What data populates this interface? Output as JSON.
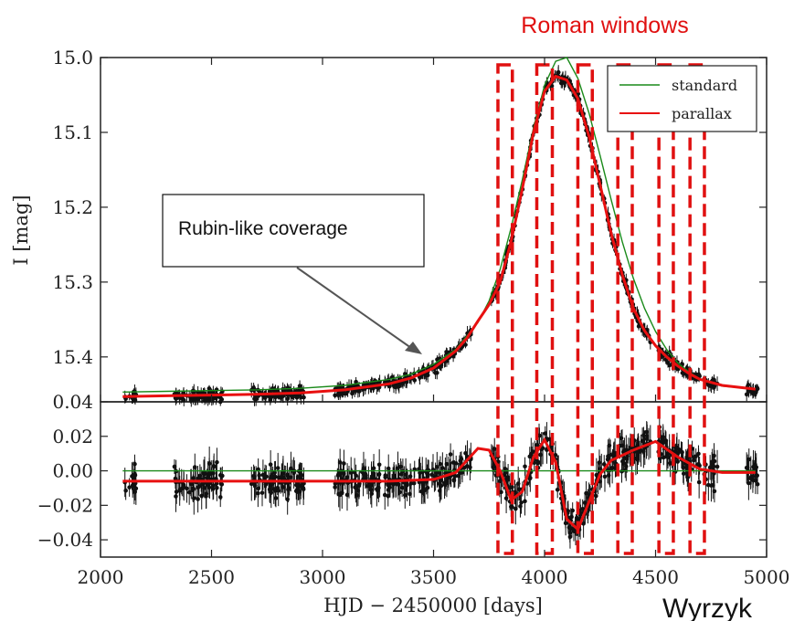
{
  "chart_data": [
    {
      "type": "line",
      "panel": "top",
      "title": "Roman windows",
      "ylabel": "I [mag]",
      "xlim": [
        2000,
        5000
      ],
      "ylim": [
        15.46,
        15.0
      ],
      "y_inverted": true,
      "yticks": [
        "15.0",
        "15.1",
        "15.2",
        "15.3",
        "15.4"
      ],
      "legend": {
        "placement": "top-right",
        "entries": [
          "standard",
          "parallax"
        ]
      },
      "series": [
        {
          "name": "standard",
          "color": "#1a8a1a",
          "x": [
            2100,
            2300,
            2500,
            2700,
            2900,
            3100,
            3300,
            3400,
            3500,
            3600,
            3700,
            3750,
            3800,
            3850,
            3900,
            3950,
            4000,
            4050,
            4100,
            4150,
            4200,
            4250,
            4300,
            4350,
            4400,
            4450,
            4500,
            4550,
            4600,
            4650,
            4700,
            4800,
            4950
          ],
          "y": [
            15.447,
            15.446,
            15.445,
            15.444,
            15.442,
            15.438,
            15.43,
            15.423,
            15.41,
            15.39,
            15.354,
            15.325,
            15.283,
            15.227,
            15.163,
            15.094,
            15.037,
            15.005,
            15.0,
            15.028,
            15.074,
            15.131,
            15.19,
            15.246,
            15.295,
            15.335,
            15.366,
            15.39,
            15.408,
            15.42,
            15.43,
            15.439,
            15.443
          ]
        },
        {
          "name": "parallax",
          "color": "#e81010",
          "x": [
            2100,
            2300,
            2500,
            2700,
            2900,
            3100,
            3300,
            3400,
            3500,
            3600,
            3650,
            3700,
            3750,
            3800,
            3850,
            3900,
            3950,
            4000,
            4050,
            4100,
            4150,
            4200,
            4250,
            4300,
            4350,
            4400,
            4450,
            4500,
            4550,
            4600,
            4650,
            4700,
            4800,
            4950
          ],
          "y": [
            15.453,
            15.452,
            15.451,
            15.45,
            15.448,
            15.444,
            15.436,
            15.428,
            15.415,
            15.392,
            15.375,
            15.352,
            15.33,
            15.3,
            15.245,
            15.175,
            15.1,
            15.045,
            15.025,
            15.03,
            15.055,
            15.105,
            15.17,
            15.235,
            15.29,
            15.335,
            15.365,
            15.385,
            15.4,
            15.412,
            15.422,
            15.43,
            15.438,
            15.443
          ]
        }
      ],
      "annotations": [
        {
          "text": "Rubin-like coverage",
          "points_to": [
            3470,
            15.41
          ]
        }
      ],
      "windows_x": [
        [
          3790,
          3855
        ],
        [
          3965,
          4035
        ],
        [
          4150,
          4215
        ],
        [
          4330,
          4395
        ],
        [
          4515,
          4580
        ],
        [
          4655,
          4720
        ]
      ]
    },
    {
      "type": "line",
      "panel": "bottom",
      "xlabel": "HJD − 2450000 [days]",
      "xlim": [
        2000,
        5000
      ],
      "ylim": [
        -0.05,
        0.04
      ],
      "xticks": [
        "2000",
        "2500",
        "3000",
        "3500",
        "4000",
        "4500",
        "5000"
      ],
      "yticks": [
        "0.04",
        "0.02",
        "0.00",
        "−0.02",
        "−0.04"
      ],
      "series": [
        {
          "name": "standard",
          "color": "#1a8a1a",
          "x": [
            2100,
            4950
          ],
          "y": [
            0.0,
            0.0
          ]
        },
        {
          "name": "parallax",
          "color": "#e81010",
          "x": [
            2100,
            2500,
            2900,
            3300,
            3500,
            3600,
            3650,
            3700,
            3750,
            3800,
            3850,
            3900,
            3950,
            4000,
            4050,
            4100,
            4150,
            4200,
            4250,
            4300,
            4400,
            4500,
            4600,
            4700,
            4800,
            4950
          ],
          "y": [
            -0.006,
            -0.006,
            -0.006,
            -0.006,
            -0.005,
            -0.001,
            0.006,
            0.013,
            0.012,
            0.0,
            -0.017,
            -0.012,
            0.008,
            0.018,
            0.005,
            -0.028,
            -0.034,
            -0.018,
            -0.002,
            0.006,
            0.012,
            0.017,
            0.008,
            0.001,
            -0.001,
            -0.001
          ]
        }
      ]
    }
  ],
  "credit": "Wyrzyk"
}
